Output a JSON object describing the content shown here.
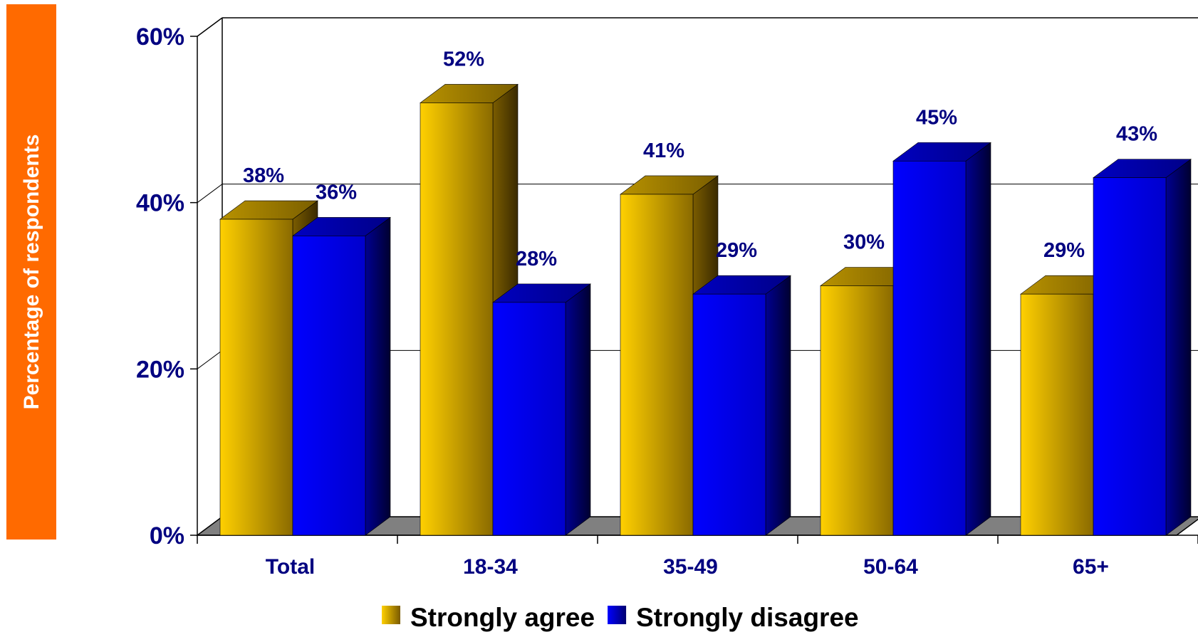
{
  "chart_data": {
    "type": "bar",
    "ylabel": "Percentage of respondents",
    "categories": [
      "Total",
      "18-34",
      "35-49",
      "50-64",
      "65+"
    ],
    "ylim": [
      0,
      60
    ],
    "y_ticks": [
      "0%",
      "20%",
      "40%",
      "60%"
    ],
    "grid": true,
    "legend_position": "bottom",
    "series": [
      {
        "name": "Strongly agree",
        "values": [
          38,
          52,
          41,
          30,
          29
        ],
        "labels": [
          "38%",
          "52%",
          "41%",
          "30%",
          "29%"
        ],
        "color": "#ffc800"
      },
      {
        "name": "Strongly disagree",
        "values": [
          36,
          28,
          29,
          45,
          43
        ],
        "labels": [
          "36%",
          "28%",
          "29%",
          "45%",
          "43%"
        ],
        "color": "#0000ff"
      }
    ]
  }
}
